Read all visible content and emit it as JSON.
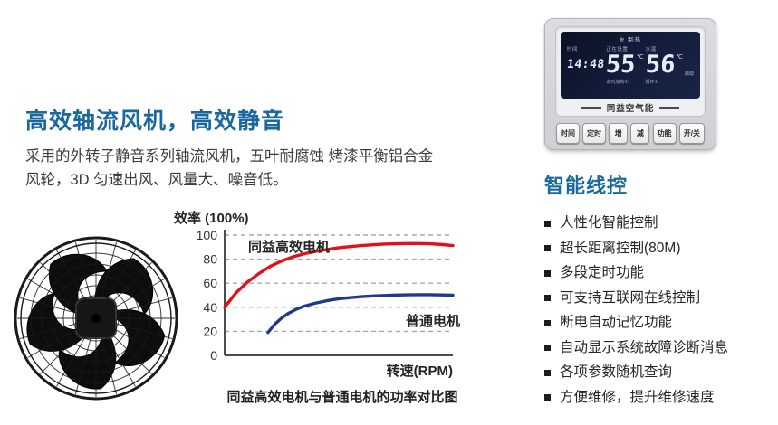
{
  "left": {
    "heading": "高效轴流风机，高效静音",
    "paragraph_line1": "采用的外转子静音系列轴流风机，五叶耐腐蚀 烤漆平衡铝合金",
    "paragraph_line2": "风轮，3D 匀速出风、风量大、噪音低。"
  },
  "chart_data": {
    "type": "line",
    "title": "同益高效电机与普通电机的功率对比图",
    "ylabel": "效率 (100%)",
    "xlabel": "转速(RPM)",
    "ylim": [
      0,
      100
    ],
    "xlim": [
      0,
      100
    ],
    "yticks": [
      0,
      20,
      40,
      60,
      80,
      100
    ],
    "grid": "horizontal-dashed",
    "legend_position": "inline-labels",
    "series": [
      {
        "name": "同益高效电机",
        "color": "#e2101b",
        "points": [
          [
            0,
            40
          ],
          [
            5,
            52
          ],
          [
            10,
            61
          ],
          [
            15,
            68
          ],
          [
            20,
            74
          ],
          [
            25,
            78.5
          ],
          [
            30,
            82
          ],
          [
            35,
            84.5
          ],
          [
            40,
            86.5
          ],
          [
            45,
            88
          ],
          [
            50,
            89.5
          ],
          [
            55,
            90.5
          ],
          [
            60,
            91.3
          ],
          [
            65,
            92
          ],
          [
            70,
            92.5
          ],
          [
            75,
            92.8
          ],
          [
            80,
            93
          ],
          [
            85,
            93
          ],
          [
            90,
            92.8
          ],
          [
            95,
            92.2
          ],
          [
            100,
            91.3
          ]
        ]
      },
      {
        "name": "普通电机",
        "color": "#20398f",
        "points": [
          [
            19,
            19
          ],
          [
            22,
            26
          ],
          [
            25,
            31
          ],
          [
            28,
            35
          ],
          [
            31,
            38
          ],
          [
            35,
            41
          ],
          [
            40,
            43.5
          ],
          [
            45,
            45.5
          ],
          [
            50,
            47
          ],
          [
            55,
            48
          ],
          [
            60,
            48.8
          ],
          [
            65,
            49.4
          ],
          [
            70,
            49.8
          ],
          [
            75,
            50.1
          ],
          [
            80,
            50.3
          ],
          [
            85,
            50.4
          ],
          [
            90,
            50.4
          ],
          [
            95,
            50.2
          ],
          [
            100,
            50
          ]
        ]
      }
    ]
  },
  "thermostat": {
    "brand": "同益空气能",
    "display": {
      "mode_label": "制热",
      "time_label": "时间",
      "time_value": "14:48",
      "set_label": "正在设置",
      "set_temp": "55",
      "set_unit": "℃",
      "set_sub": "定时加热①",
      "water_label": "水温",
      "water_temp": "56",
      "water_unit": "℃",
      "water_side": "启动",
      "water_sub": "循环①"
    },
    "buttons": [
      "时间",
      "定时",
      "增",
      "减",
      "功能",
      "开/关"
    ]
  },
  "features": {
    "heading": "智能线控",
    "items": [
      "人性化智能控制",
      "超长距离控制(80M)",
      "多段定时功能",
      "可支持互联网在线控制",
      "断电自动记忆功能",
      "自动显示系统故障诊断消息",
      "各项参数随机查询",
      "方便维修，提升维修速度"
    ]
  },
  "icons": {
    "heating": "❊"
  },
  "colors": {
    "accent_blue": "#19699e",
    "curve_red": "#e2101b",
    "curve_blue": "#20398f"
  }
}
